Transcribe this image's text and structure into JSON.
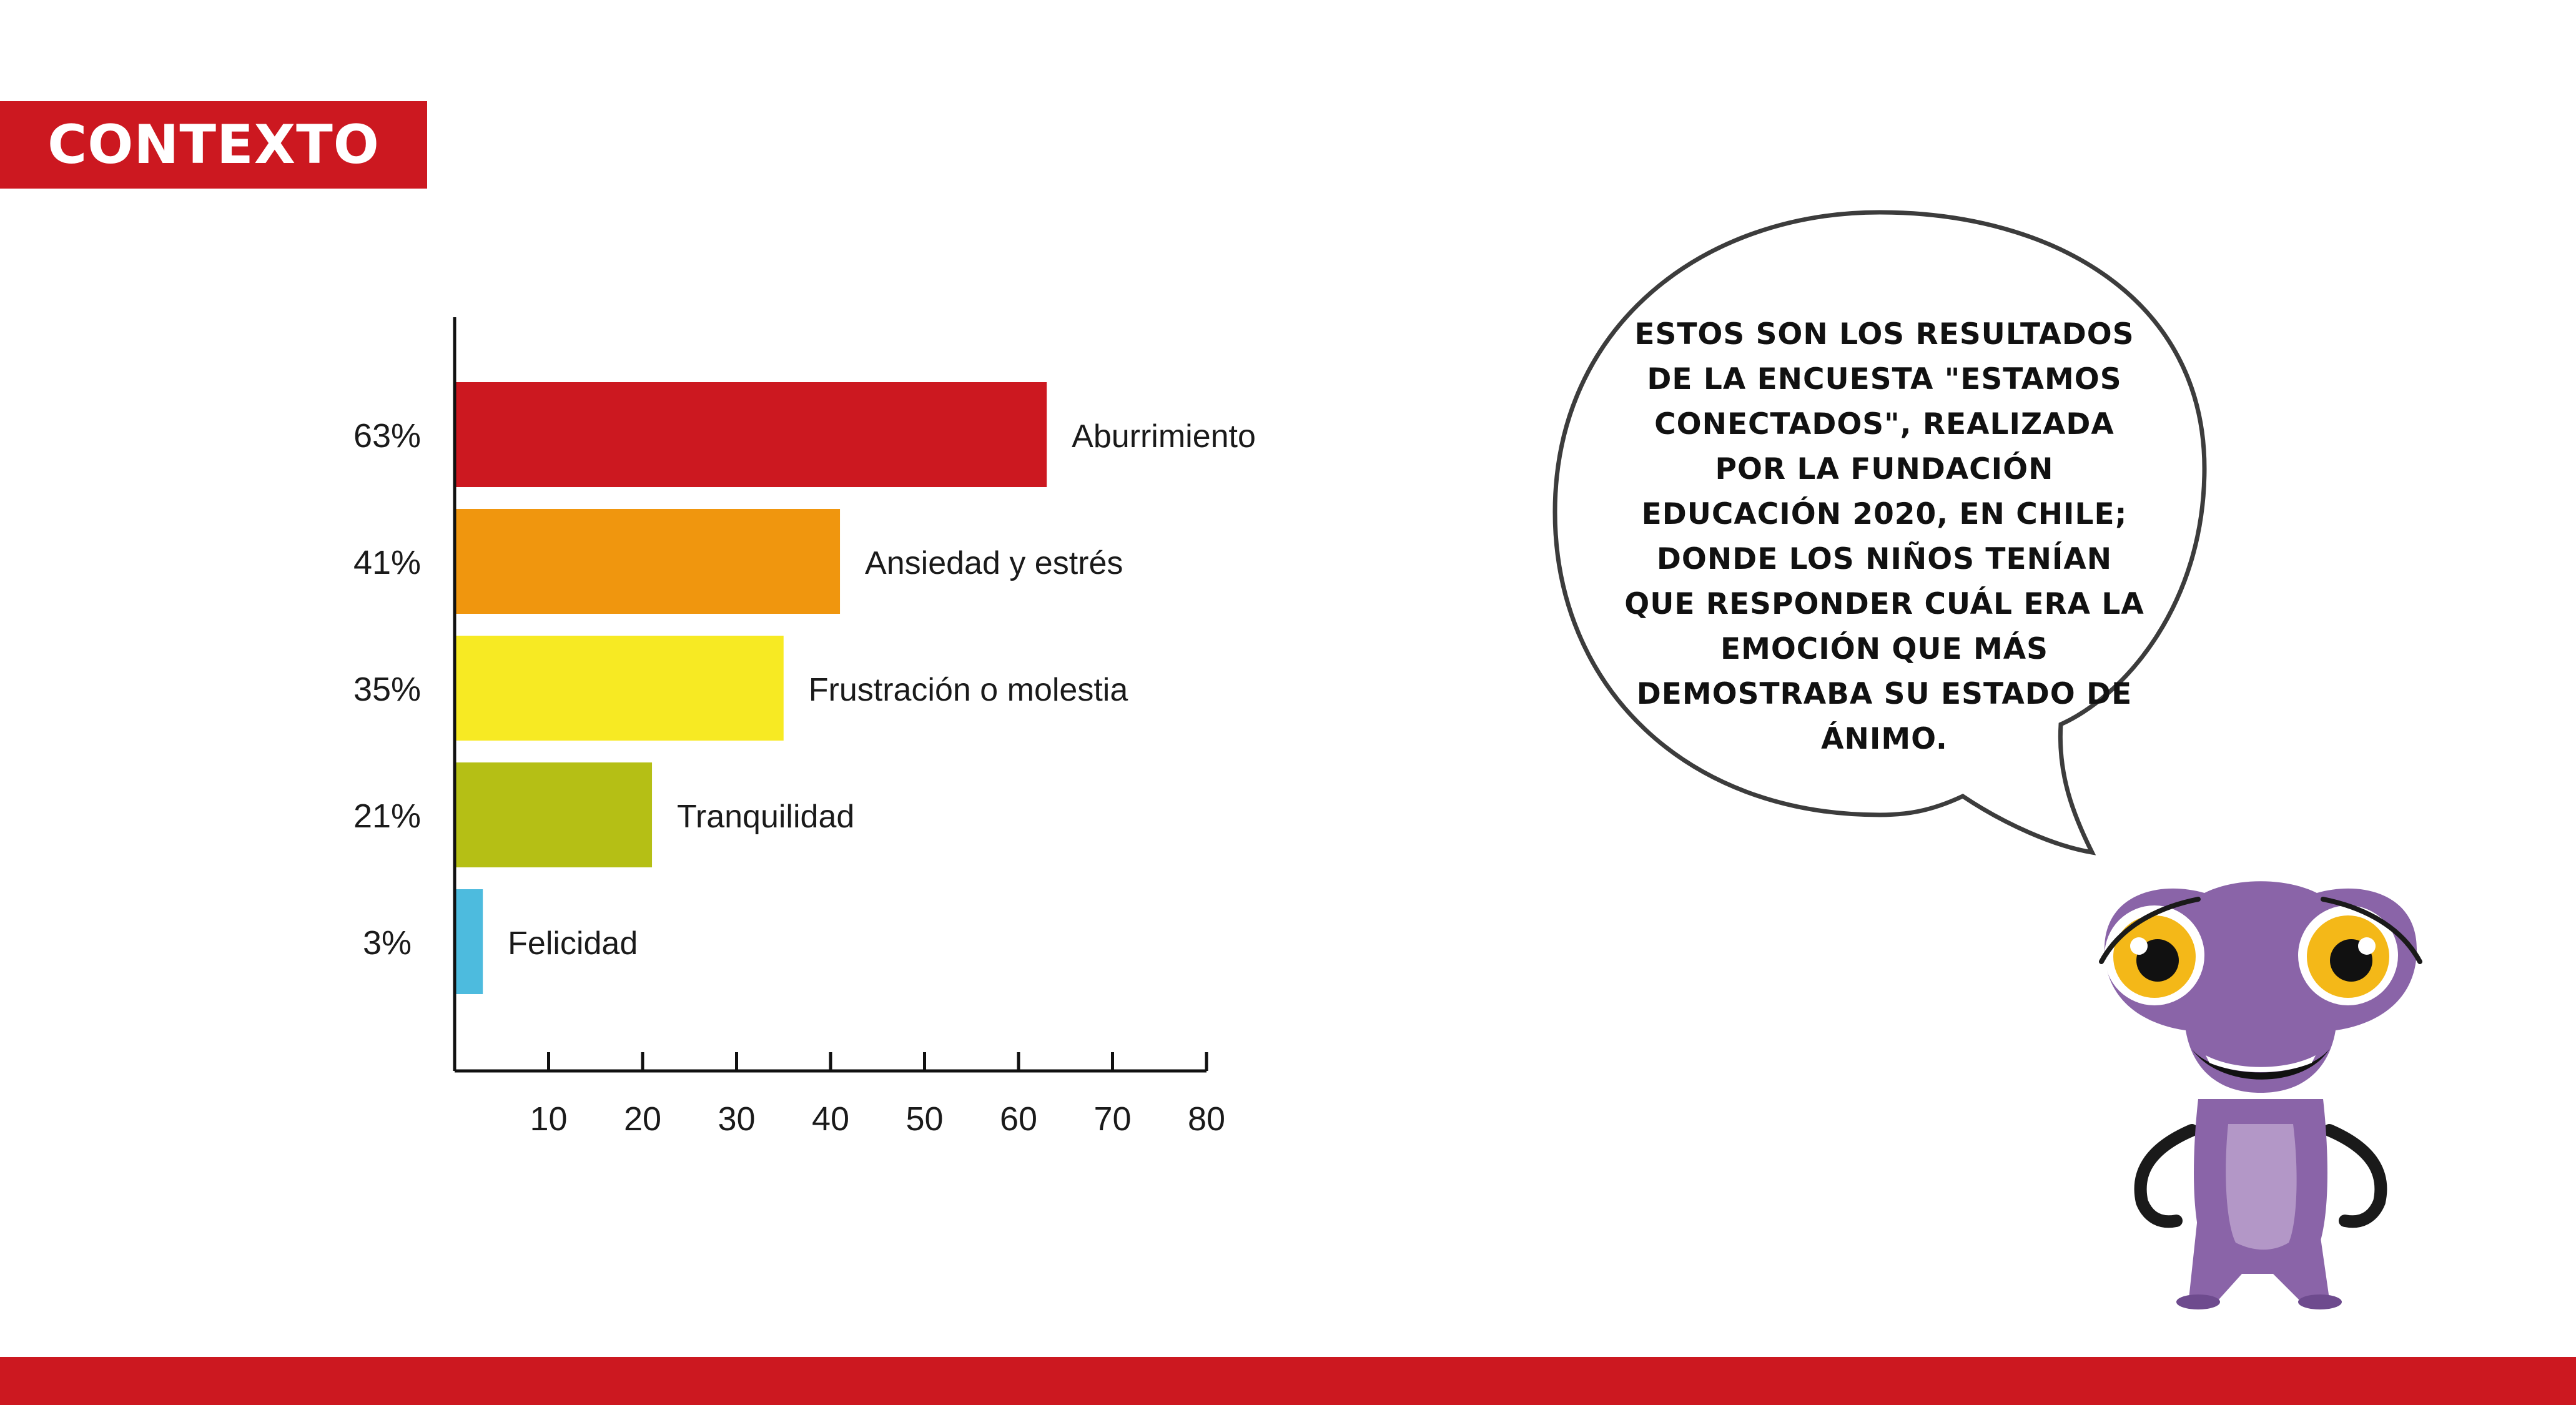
{
  "section_tag": "CONTEXTO",
  "speech_bubble": {
    "text": "Estos son los resultados de la encuesta \"Estamos conectados\",  realizada por la Fundación Educación 2020, en Chile; donde los niños tenían que responder cuál era la emoción que más demostraba su estado de ánimo."
  },
  "colors": {
    "brand_red": "#cc1820",
    "mascot_purple": "#8a64a8",
    "eye_yellow": "#f4b818"
  },
  "chart_data": {
    "type": "bar",
    "orientation": "horizontal",
    "categories": [
      "Aburrimiento",
      "Ansiedad y estrés",
      "Frustración o molestia",
      "Tranquilidad",
      "Felicidad"
    ],
    "values": [
      63,
      41,
      35,
      21,
      3
    ],
    "value_labels": [
      "63%",
      "41%",
      "35%",
      "21%",
      "3%"
    ],
    "bar_colors": [
      "#cc1820",
      "#f0960e",
      "#f7ea23",
      "#b5bf15",
      "#4dbbde"
    ],
    "x_ticks": [
      10,
      20,
      30,
      40,
      50,
      60,
      70,
      80
    ],
    "xlim": [
      0,
      80
    ],
    "title": "",
    "xlabel": "",
    "ylabel": "",
    "grid": false,
    "legend": "none"
  }
}
